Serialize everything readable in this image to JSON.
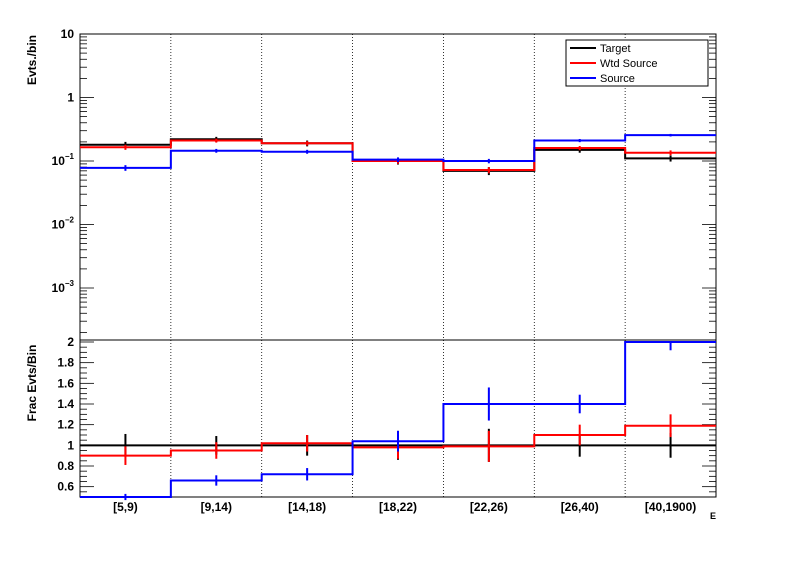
{
  "chart_data": [
    {
      "type": "line",
      "panel": "top",
      "ylabel": "Evts./bin",
      "yscale": "log",
      "ylim": [
        0.0002,
        10
      ],
      "yticks": [
        {
          "value": 10,
          "base": "10",
          "exp": ""
        },
        {
          "value": 1,
          "base": "1",
          "exp": ""
        },
        {
          "value": 0.1,
          "base": "10",
          "exp": "−1"
        },
        {
          "value": 0.01,
          "base": "10",
          "exp": "−2"
        },
        {
          "value": 0.001,
          "base": "10",
          "exp": "−3"
        }
      ],
      "categories": [
        "[5,9)",
        "[9,14)",
        "[14,18)",
        "[18,22)",
        "[22,26)",
        "[26,40)",
        "[40,1900)"
      ],
      "legend_position": "top-right",
      "series": [
        {
          "name": "Target",
          "color": "#000000",
          "values": [
            0.18,
            0.22,
            0.19,
            0.1,
            0.07,
            0.15,
            0.11
          ],
          "errors": [
            0.02,
            0.02,
            0.02,
            0.012,
            0.01,
            0.015,
            0.012
          ]
        },
        {
          "name": "Wtd Source",
          "color": "#ff0000",
          "values": [
            0.165,
            0.21,
            0.19,
            0.1,
            0.072,
            0.16,
            0.135
          ],
          "errors": [
            0.015,
            0.015,
            0.015,
            0.01,
            0.008,
            0.012,
            0.012
          ]
        },
        {
          "name": "Source",
          "color": "#0000ff",
          "values": [
            0.078,
            0.145,
            0.14,
            0.105,
            0.1,
            0.21,
            0.255
          ],
          "errors": [
            0.008,
            0.01,
            0.01,
            0.009,
            0.008,
            0.012,
            0.012
          ]
        }
      ]
    },
    {
      "type": "line",
      "panel": "bottom",
      "ylabel": "Frac Evts/Bin",
      "xlabel": "E_{miss}^{...}",
      "ylim": [
        0.5,
        2.0
      ],
      "yticks": [
        "0.6",
        "0.8",
        "1",
        "1.2",
        "1.4",
        "1.6",
        "1.8",
        "2"
      ],
      "categories": [
        "[5,9)",
        "[9,14)",
        "[14,18)",
        "[18,22)",
        "[22,26)",
        "[26,40)",
        "[40,1900)"
      ],
      "series": [
        {
          "name": "Target",
          "color": "#000000",
          "values": [
            1.0,
            1.0,
            1.0,
            1.0,
            1.0,
            1.0,
            1.0
          ],
          "errors": [
            0.11,
            0.09,
            0.1,
            0.14,
            0.16,
            0.11,
            0.12
          ]
        },
        {
          "name": "Wtd Source",
          "color": "#ff0000",
          "values": [
            0.9,
            0.95,
            1.02,
            0.98,
            0.99,
            1.1,
            1.19
          ],
          "errors": [
            0.09,
            0.08,
            0.08,
            0.11,
            0.15,
            0.1,
            0.11
          ]
        },
        {
          "name": "Source",
          "color": "#0000ff",
          "values": [
            0.5,
            0.66,
            0.72,
            1.04,
            1.4,
            1.4,
            2.0
          ],
          "errors": [
            0.03,
            0.05,
            0.06,
            0.1,
            0.16,
            0.09,
            0.08
          ]
        }
      ]
    }
  ]
}
